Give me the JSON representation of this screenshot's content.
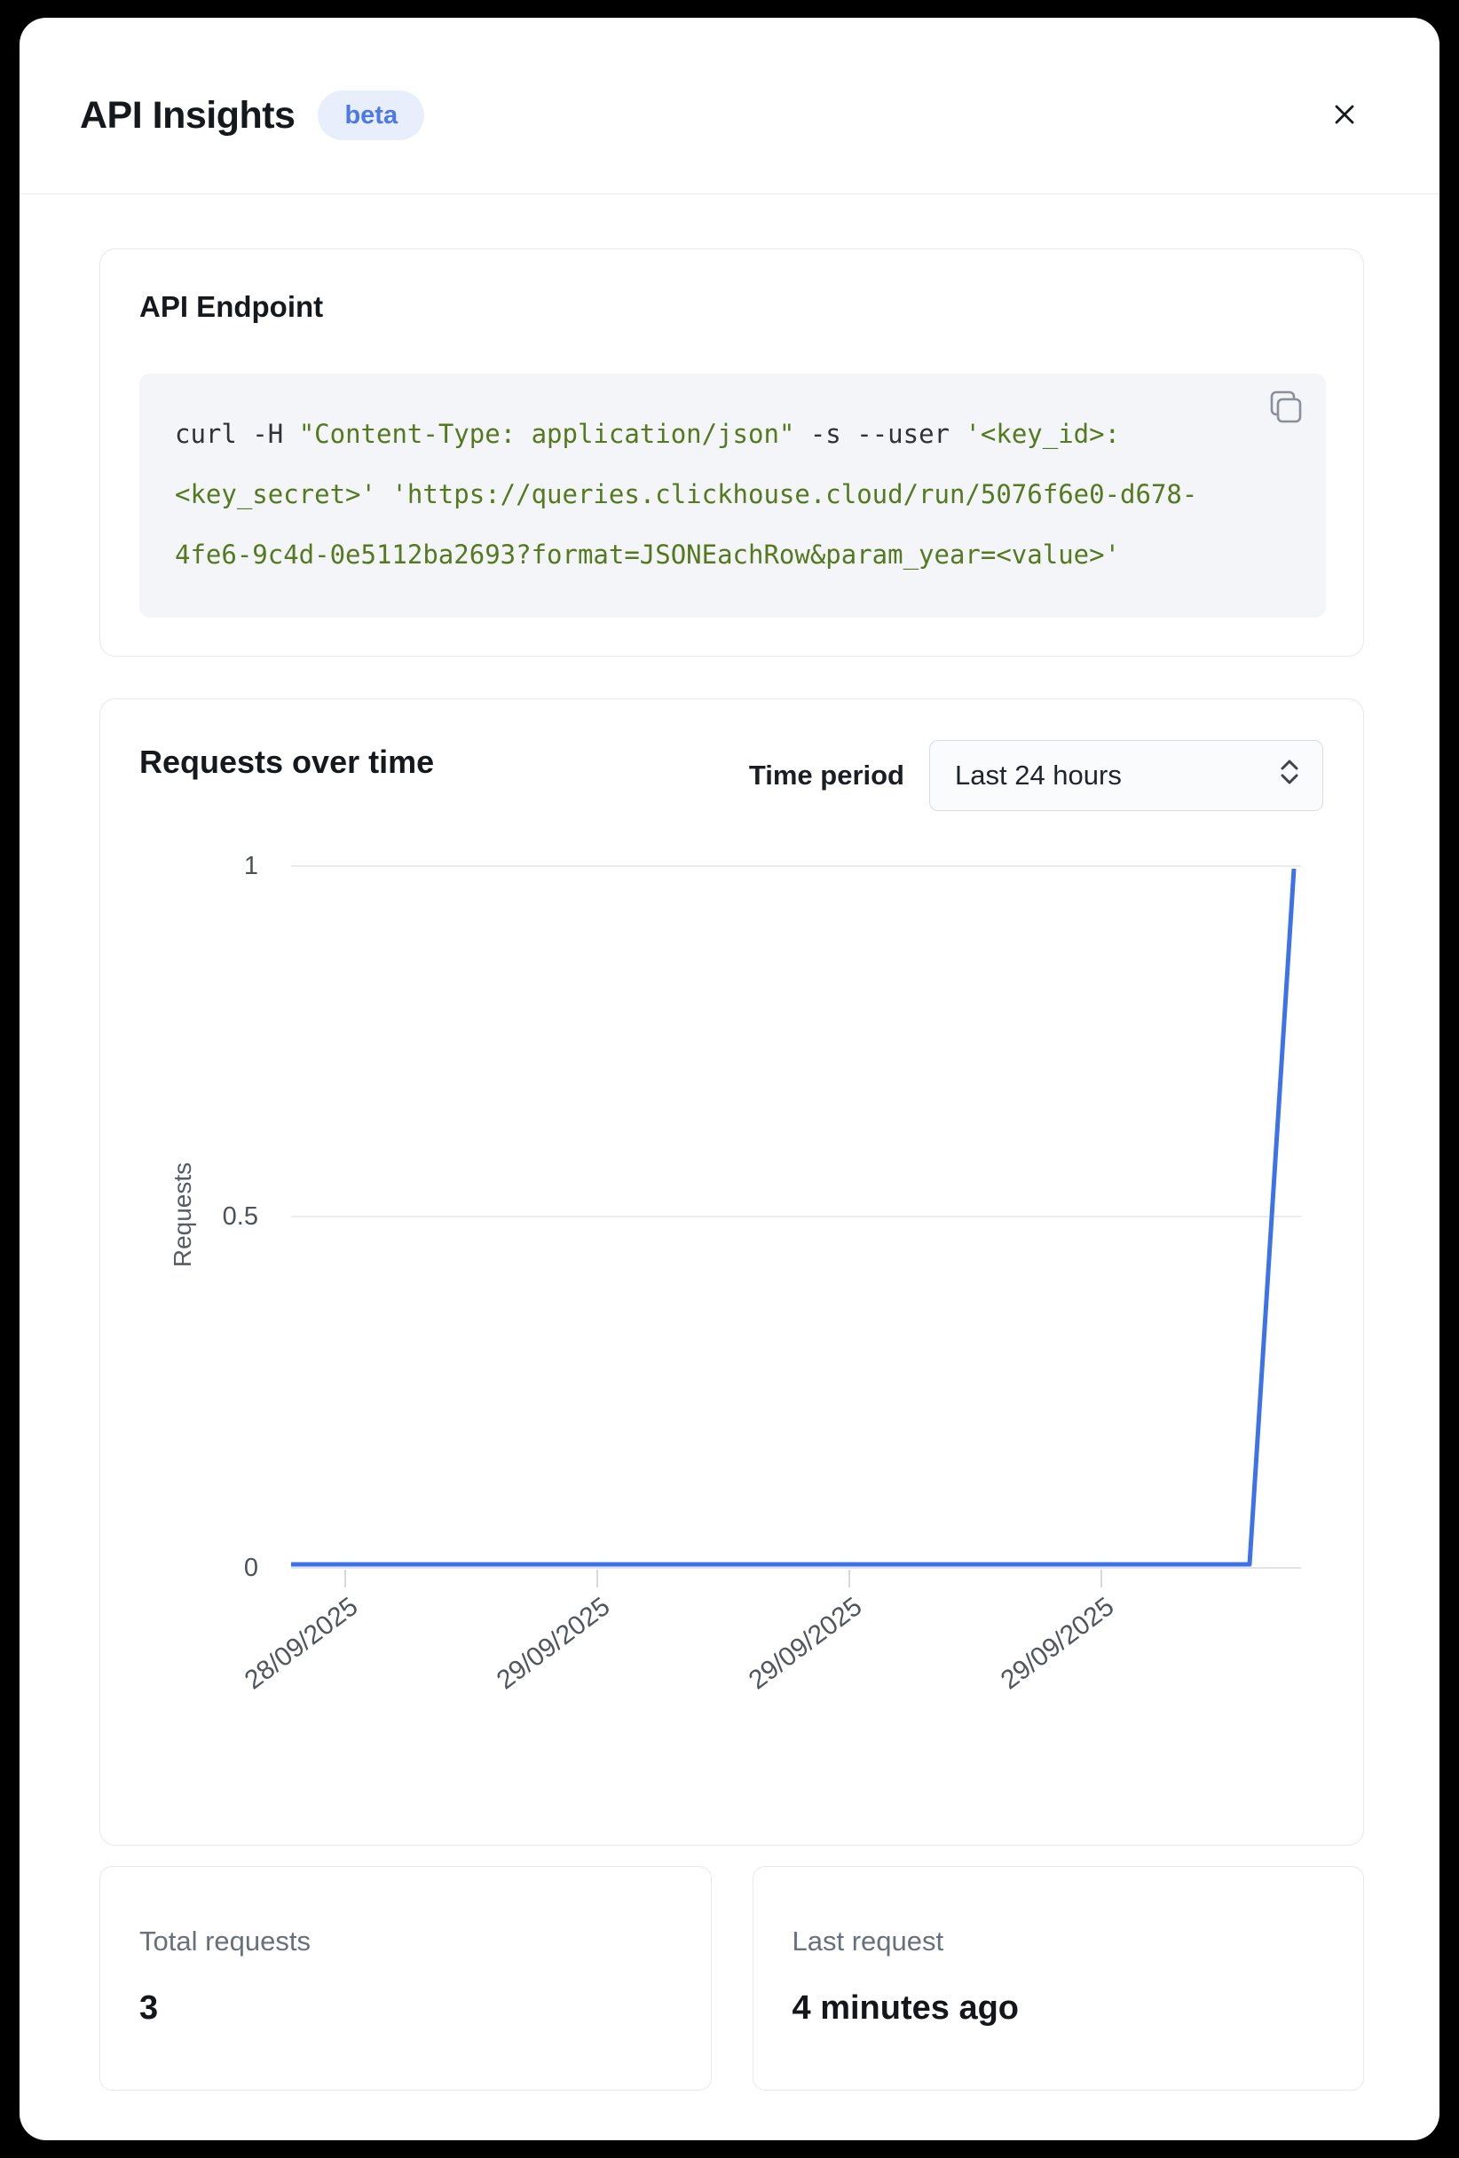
{
  "modal": {
    "title": "API Insights",
    "badge": "beta"
  },
  "endpoint": {
    "heading": "API Endpoint",
    "code_lines": [
      {
        "parts": [
          {
            "t": "curl -H ",
            "c": "d"
          },
          {
            "t": "\"Content-Type: application/json\"",
            "c": "g"
          },
          {
            "t": " -s --user ",
            "c": "d"
          },
          {
            "t": "'<key_id>:",
            "c": "g"
          }
        ]
      },
      {
        "parts": [
          {
            "t": "<key_secret>' 'https://queries.clickhouse.cloud/run/5076f6e0-d678-",
            "c": "g"
          }
        ]
      },
      {
        "parts": [
          {
            "t": "4fe6-9c4d-0e5112ba2693?format=JSONEachRow&param_year=<value>'",
            "c": "g"
          }
        ]
      }
    ]
  },
  "requests_section": {
    "heading": "Requests over time",
    "time_period_label": "Time period",
    "time_period_value": "Last 24 hours"
  },
  "chart_data": {
    "type": "line",
    "title": "Requests over time",
    "xlabel": "",
    "ylabel": "Requests",
    "ylim": [
      0,
      1
    ],
    "grid": true,
    "legend": false,
    "y_ticks": [
      "1",
      "0.5",
      "0"
    ],
    "x_ticks": [
      "28/09/2025",
      "29/09/2025",
      "29/09/2025",
      "29/09/2025"
    ],
    "series": [
      {
        "name": "Requests",
        "color": "#3d72e8",
        "points": [
          {
            "x": 0,
            "y": 0
          },
          {
            "x": 0.949,
            "y": 0
          },
          {
            "x": 0.993,
            "y": 1
          }
        ],
        "description": "Requests count is 0 across the whole 24h window and rises to 1 at the far right edge"
      }
    ]
  },
  "stats": {
    "total": {
      "label": "Total requests",
      "value": "3"
    },
    "last": {
      "label": "Last request",
      "value": "4 minutes ago"
    }
  },
  "colors": {
    "accent_blue": "#3d72e8",
    "badge_bg": "#e8eefb",
    "badge_text": "#4c78e8",
    "code_green": "#54791f",
    "code_dark": "#2f3338",
    "grid_line": "#eaecef",
    "axis_line": "#e1e4e8",
    "muted_text": "#68707e"
  }
}
